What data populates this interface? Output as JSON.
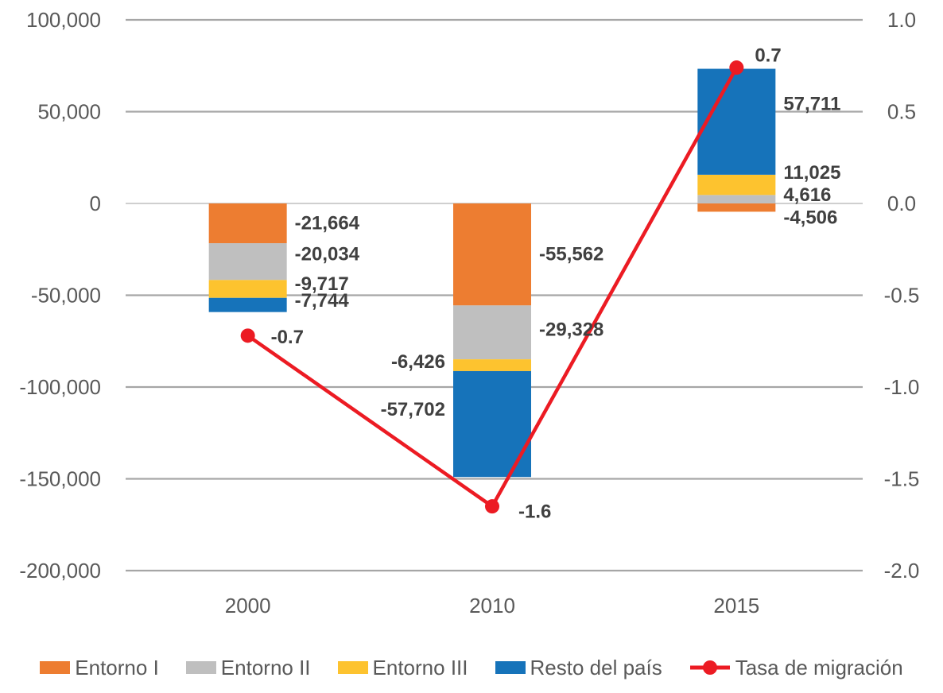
{
  "chart_data": {
    "type": "combo-stacked-bar-line",
    "title": "",
    "categories": [
      "2000",
      "2010",
      "2015"
    ],
    "bar_series": [
      {
        "name": "Entorno I",
        "color": "#ED7D31",
        "values": [
          -21664,
          -55562,
          -4506
        ],
        "labels": [
          "-21,664",
          "-55,562",
          "-4,506"
        ],
        "label_sides": [
          "right",
          "right",
          "right"
        ],
        "label_dy": [
          0,
          0,
          13
        ]
      },
      {
        "name": "Entorno II",
        "color": "#BFBFBF",
        "values": [
          -20034,
          -29328,
          4616
        ],
        "labels": [
          "-20,034",
          "-29,328",
          "4,616"
        ],
        "label_sides": [
          "right",
          "right",
          "right"
        ],
        "label_dy": [
          -9,
          -3,
          -5
        ]
      },
      {
        "name": "Entorno III",
        "color": "#FDC32F",
        "values": [
          -9717,
          -6426,
          11025
        ],
        "labels": [
          "-9,717",
          "-6,426",
          "11,025"
        ],
        "label_sides": [
          "right",
          "left",
          "right"
        ],
        "label_dy": [
          -6,
          -4,
          -15
        ]
      },
      {
        "name": "Resto del país",
        "color": "#1673BA",
        "values": [
          -7744,
          -57702,
          57711
        ],
        "labels": [
          "-7,744",
          "-57,702",
          "57,711"
        ],
        "label_sides": [
          "right",
          "left",
          "right"
        ],
        "label_dy": [
          -5,
          -18,
          -22
        ]
      }
    ],
    "line_series": {
      "name": "Tasa de migración",
      "color": "#EC1B23",
      "axis": "right",
      "values": [
        -0.72,
        -1.65,
        0.74
      ],
      "labels": [
        "-0.7",
        "-1.6",
        "0.7"
      ],
      "label_dx": [
        20,
        24,
        14
      ],
      "label_dy": [
        2,
        7,
        -15
      ]
    },
    "axis_left": {
      "min": -200000,
      "max": 100000,
      "tick_values": [
        100000,
        50000,
        0,
        -50000,
        -100000,
        -150000,
        -200000
      ],
      "ticks": [
        "100,000",
        "50,000",
        "0",
        "-50,000",
        "-100,000",
        "-150,000",
        "-200,000"
      ]
    },
    "axis_right": {
      "min": -2.0,
      "max": 1.0,
      "tick_values": [
        1.0,
        0.5,
        0.0,
        -0.5,
        -1.0,
        -1.5,
        -2.0
      ],
      "ticks": [
        "1.0",
        "0.5",
        "0.0",
        "-0.5",
        "-1.0",
        "-1.5",
        "-2.0"
      ]
    },
    "grid": true,
    "legend_position": "bottom",
    "style": {
      "axis_text_color": "#595959",
      "data_label_color": "#404040",
      "gridline_color": "#A6A6A6",
      "zero_line_color": "#BFBFBF",
      "background": "#FFFFFF"
    }
  }
}
